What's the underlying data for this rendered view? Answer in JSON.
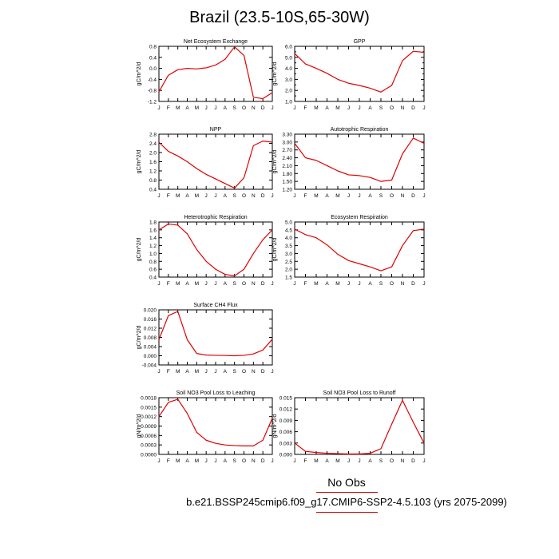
{
  "title": "Brazil (23.5-10S,65-30W)",
  "footer": {
    "obs_label": "No Obs",
    "case_label": "b.e21.BSSP245cmip6.f09_g17.CMIP6-SSP2-4.5.103 (yrs 2075-2099)"
  },
  "colors": {
    "line": "#e00000",
    "axis": "#000000",
    "rule": "#d00000"
  },
  "chart_data": [
    {
      "type": "line",
      "title": "Net Ecosystem Exchange",
      "ylabel": "gC/m^2/d",
      "categories": [
        "J",
        "F",
        "M",
        "A",
        "M",
        "J",
        "J",
        "A",
        "S",
        "O",
        "N",
        "D",
        "J"
      ],
      "yticks": [
        "0.8",
        "0.4",
        "0.0",
        "-0.4",
        "-0.8",
        "-1.2"
      ],
      "ylim": [
        -1.2,
        0.8
      ],
      "values": [
        -0.85,
        -0.25,
        -0.05,
        0.0,
        -0.02,
        0.02,
        0.12,
        0.33,
        0.78,
        0.47,
        -1.05,
        -1.1,
        -0.88
      ]
    },
    {
      "type": "line",
      "title": "GPP",
      "ylabel": "gC/m^2/d",
      "categories": [
        "J",
        "F",
        "M",
        "A",
        "M",
        "J",
        "J",
        "A",
        "S",
        "O",
        "N",
        "D",
        "J"
      ],
      "yticks": [
        "6.0",
        "5.0",
        "4.0",
        "3.0",
        "2.0",
        "1.0"
      ],
      "ylim": [
        1.0,
        6.0
      ],
      "yminor": [
        "5.5",
        "4.5",
        "3.5",
        "2.5",
        "1.5"
      ],
      "values": [
        5.35,
        4.4,
        4.0,
        3.55,
        3.0,
        2.65,
        2.45,
        2.2,
        1.85,
        2.45,
        4.7,
        5.55,
        5.45
      ]
    },
    {
      "type": "line",
      "title": "NPP",
      "ylabel": "gC/m^2/d",
      "categories": [
        "J",
        "F",
        "M",
        "A",
        "M",
        "J",
        "J",
        "A",
        "S",
        "O",
        "N",
        "D",
        "J"
      ],
      "yticks": [
        "2.8",
        "2.4",
        "2.0",
        "1.6",
        "1.2",
        "0.8",
        "0.4"
      ],
      "ylim": [
        0.4,
        2.8
      ],
      "values": [
        2.45,
        2.05,
        1.85,
        1.6,
        1.3,
        1.05,
        0.85,
        0.65,
        0.45,
        0.9,
        2.3,
        2.5,
        2.45
      ]
    },
    {
      "type": "line",
      "title": "Autotrophic Respiration",
      "ylabel": "gC/m^2/d",
      "categories": [
        "J",
        "F",
        "M",
        "A",
        "M",
        "J",
        "J",
        "A",
        "S",
        "O",
        "N",
        "D",
        "J"
      ],
      "yticks": [
        "3.30",
        "3.00",
        "2.70",
        "2.40",
        "2.10",
        "1.80",
        "1.50",
        "1.20"
      ],
      "ylim": [
        1.2,
        3.3
      ],
      "values": [
        2.95,
        2.4,
        2.3,
        2.1,
        1.9,
        1.75,
        1.72,
        1.65,
        1.5,
        1.55,
        2.55,
        3.15,
        2.95
      ]
    },
    {
      "type": "line",
      "title": "Heterotrophic Respiration",
      "ylabel": "gC/m^2/d",
      "categories": [
        "J",
        "F",
        "M",
        "A",
        "M",
        "J",
        "J",
        "A",
        "S",
        "O",
        "N",
        "D",
        "J"
      ],
      "yticks": [
        "1.8",
        "1.6",
        "1.4",
        "1.2",
        "1.0",
        "0.8",
        "0.6",
        "0.4"
      ],
      "ylim": [
        0.4,
        1.8
      ],
      "values": [
        1.6,
        1.75,
        1.72,
        1.5,
        1.1,
        0.8,
        0.6,
        0.47,
        0.43,
        0.6,
        1.0,
        1.35,
        1.6
      ]
    },
    {
      "type": "line",
      "title": "Ecosystem Respiration",
      "ylabel": "gC/m^2/d",
      "categories": [
        "J",
        "F",
        "M",
        "A",
        "M",
        "J",
        "J",
        "A",
        "S",
        "O",
        "N",
        "D",
        "J"
      ],
      "yticks": [
        "5.0",
        "4.5",
        "4.0",
        "3.5",
        "3.0",
        "2.5",
        "2.0",
        "1.5"
      ],
      "ylim": [
        1.5,
        5.0
      ],
      "values": [
        4.55,
        4.2,
        4.0,
        3.55,
        2.95,
        2.55,
        2.35,
        2.15,
        1.9,
        2.15,
        3.5,
        4.45,
        4.55
      ]
    },
    {
      "type": "line",
      "title": "Surface CH4 Flux",
      "ylabel": "gC/m^2/d",
      "categories": [
        "J",
        "F",
        "M",
        "A",
        "M",
        "J",
        "J",
        "A",
        "S",
        "O",
        "N",
        "D",
        "J"
      ],
      "yticks": [
        "0.020",
        "0.016",
        "0.012",
        "0.008",
        "0.004",
        "0.000",
        "-0.004"
      ],
      "ylim": [
        -0.004,
        0.02
      ],
      "values": [
        0.007,
        0.0175,
        0.0193,
        0.007,
        0.001,
        0.0003,
        0.0002,
        0.0001,
        0.0,
        0.0002,
        0.0008,
        0.0025,
        0.0072
      ]
    },
    {
      "type": "line",
      "title": "Soil NO3 Pool Loss to Leaching",
      "ylabel": "gN/m^2/d",
      "categories": [
        "J",
        "F",
        "M",
        "A",
        "M",
        "J",
        "J",
        "A",
        "S",
        "O",
        "N",
        "D",
        "J"
      ],
      "yticks": [
        "0.0018",
        "0.0015",
        "0.0012",
        "0.0009",
        "0.0006",
        "0.0003",
        "0.0000"
      ],
      "ylim": [
        0.0,
        0.0018
      ],
      "values": [
        0.0012,
        0.00165,
        0.00175,
        0.0013,
        0.0007,
        0.00045,
        0.00035,
        0.0003,
        0.00028,
        0.00027,
        0.00027,
        0.00045,
        0.00115
      ]
    },
    {
      "type": "line",
      "title": "Soil NO3 Pool Loss to Runoff",
      "ylabel": "gN/m^2/d",
      "categories": [
        "J",
        "F",
        "M",
        "A",
        "M",
        "J",
        "J",
        "A",
        "S",
        "O",
        "N",
        "D",
        "J"
      ],
      "yticks": [
        "0.015",
        "0.012",
        "0.009",
        "0.006",
        "0.003",
        "0.000"
      ],
      "ylim": [
        0.0,
        0.015
      ],
      "values": [
        0.003,
        0.0008,
        0.0005,
        0.0003,
        0.0002,
        0.0001,
        0.0001,
        0.0003,
        0.0015,
        0.008,
        0.0143,
        0.0085,
        0.003
      ]
    }
  ]
}
